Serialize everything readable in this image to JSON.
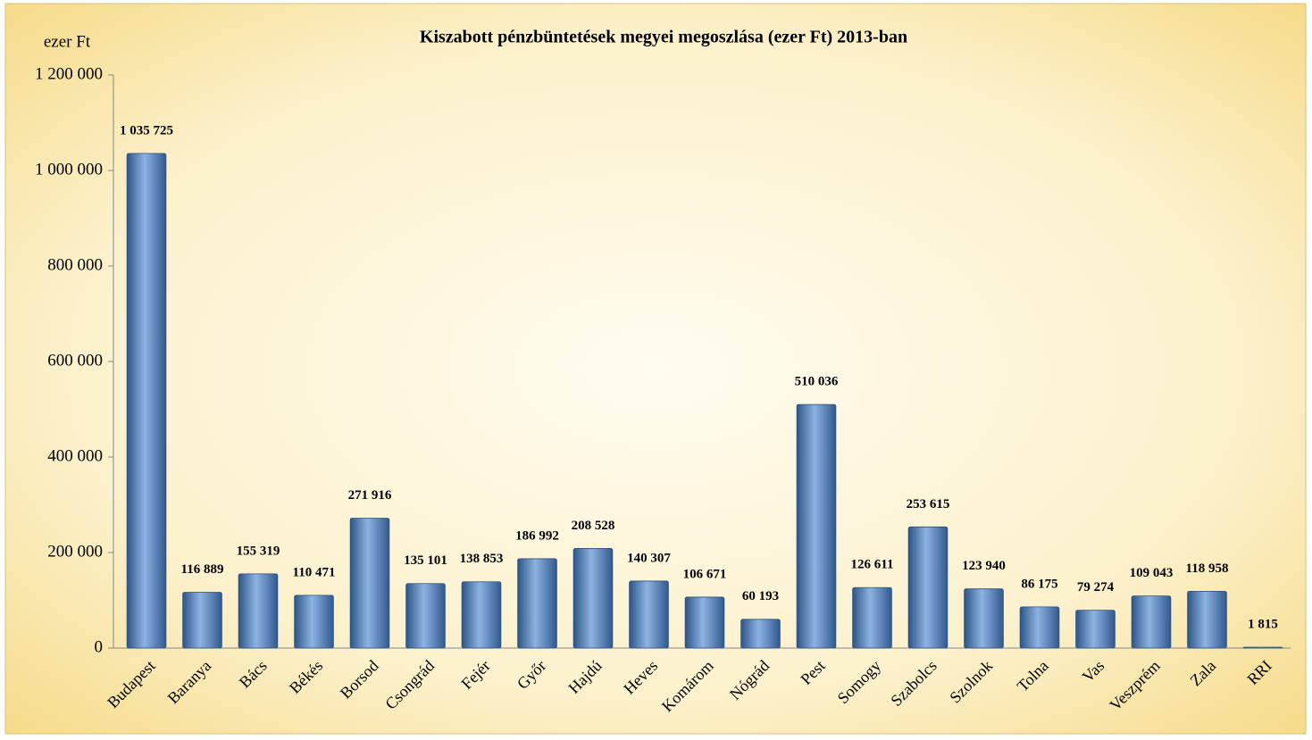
{
  "chart_data": {
    "type": "bar",
    "title": "Kiszabott pénzbüntetések megyei megoszlása (ezer Ft) 2013-ban",
    "y_label": "ezer  Ft",
    "categories": [
      "Budapest",
      "Baranya",
      "Bács",
      "Békés",
      "Borsod",
      "Csongrád",
      "Fejér",
      "Győr",
      "Hajdú",
      "Heves",
      "Komárom",
      "Nógrád",
      "Pest",
      "Somogy",
      "Szabolcs",
      "Szolnok",
      "Tolna",
      "Vas",
      "Veszprém",
      "Zala",
      "RRI"
    ],
    "values": [
      1035725,
      116889,
      155319,
      110471,
      271916,
      135101,
      138853,
      186992,
      208528,
      140307,
      106671,
      60193,
      510036,
      126611,
      253615,
      123940,
      86175,
      79274,
      109043,
      118958,
      1815
    ],
    "value_labels": [
      "1 035 725",
      "116 889",
      "155 319",
      "110 471",
      "271 916",
      "135 101",
      "138 853",
      "186 992",
      "208 528",
      "140 307",
      "106 671",
      "60 193",
      "510 036",
      "126 611",
      "253 615",
      "123 940",
      "86 175",
      "79 274",
      "109 043",
      "118 958",
      "1 815"
    ],
    "color": "#4f81bd",
    "ylim": [
      0,
      1200000
    ],
    "yticks": [
      0,
      {
        "value": 200000,
        "label": "200 000"
      },
      {
        "value": 400000,
        "label": "400 000"
      },
      {
        "value": 600000,
        "label": "600 000"
      },
      {
        "value": 800000,
        "label": "800 000"
      },
      {
        "value": 1000000,
        "label": "1 000 000"
      },
      {
        "value": 1200000,
        "label": "1 200 000"
      }
    ],
    "grid": false
  }
}
